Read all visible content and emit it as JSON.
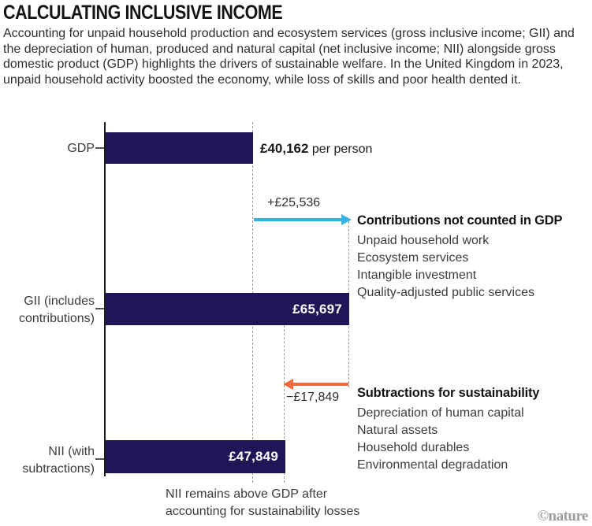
{
  "header": {
    "title": "CALCULATING INCLUSIVE INCOME",
    "subtitle": "Accounting for unpaid household production and ecosystem services (gross inclusive income; GII) and the depreciation of human, produced and natural capital (net inclusive income; NII) alongside gross domestic product (GDP) highlights the drivers of sustainable welfare. In the United Kingdom in 2023, unpaid household activity boosted the economy, while loss of skills and poor health dented it."
  },
  "chart_data": {
    "type": "bar",
    "orientation": "horizontal",
    "title": "Calculating inclusive income",
    "unit": "£ per person, United Kingdom, 2023",
    "categories": [
      "GDP",
      "GII (includes contributions)",
      "NII (with subtractions)"
    ],
    "values": [
      40162,
      65697,
      47849
    ],
    "xlim": [
      0,
      67000
    ],
    "grid": "dashed value guides at 40162, 47849 and 65697",
    "bar_color": "#201556",
    "bars": [
      {
        "label_lines": [
          "GDP",
          ""
        ],
        "value": 40162,
        "value_label": "£40,162",
        "value_suffix": " per person",
        "value_position": "outside"
      },
      {
        "label_lines": [
          "GII (includes",
          "contributions)"
        ],
        "value": 65697,
        "value_label": "£65,697",
        "value_suffix": "",
        "value_position": "inside"
      },
      {
        "label_lines": [
          "NII (with",
          "subtractions)"
        ],
        "value": 47849,
        "value_label": "£47,849",
        "value_suffix": "",
        "value_position": "inside"
      }
    ],
    "annotations": [
      {
        "delta": 25536,
        "delta_label": "+£25,536",
        "direction": "right",
        "arrow_color": "#35b2e5",
        "heading": "Contributions not counted in GDP",
        "items": [
          "Unpaid household work",
          "Ecosystem services",
          "Intangible investment",
          "Quality-adjusted public services"
        ]
      },
      {
        "delta": -17849,
        "delta_label": "−£17,849",
        "direction": "left",
        "arrow_color": "#f2693c",
        "heading": "Subtractions for sustainability",
        "items": [
          "Depreciation of human capital",
          "Natural assets",
          "Household durables",
          "Environmental degradation"
        ]
      }
    ],
    "caption_lines": [
      "NII remains above GDP after",
      "accounting for sustainability losses"
    ]
  },
  "credit": "©nature"
}
